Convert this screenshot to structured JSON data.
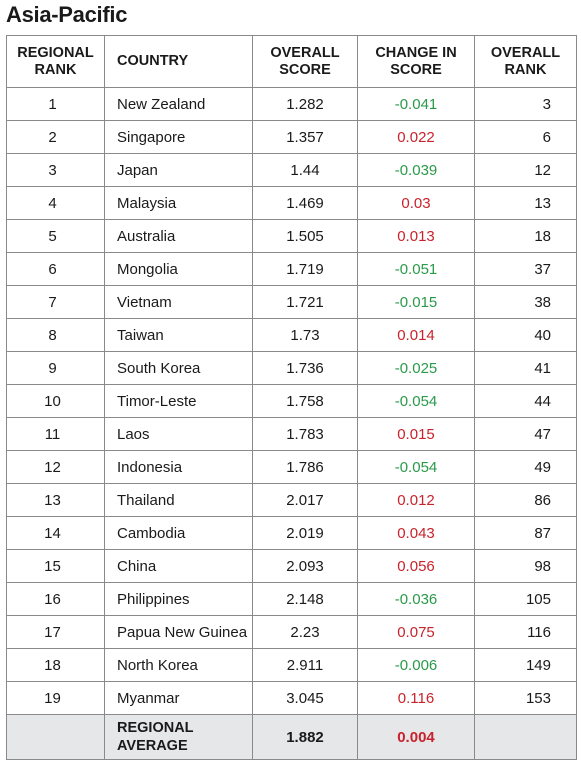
{
  "title": "Asia-Pacific",
  "headers": {
    "regional_rank": "REGIONAL RANK",
    "country": "COUNTRY",
    "overall_score": "OVERALL SCORE",
    "change_in_score": "CHANGE IN SCORE",
    "overall_rank": "OVERALL RANK"
  },
  "rows": [
    {
      "rank": "1",
      "country": "New Zealand",
      "score": "1.282",
      "change": "-0.041",
      "overall_rank": "3"
    },
    {
      "rank": "2",
      "country": "Singapore",
      "score": "1.357",
      "change": "0.022",
      "overall_rank": "6"
    },
    {
      "rank": "3",
      "country": "Japan",
      "score": "1.44",
      "change": "-0.039",
      "overall_rank": "12"
    },
    {
      "rank": "4",
      "country": "Malaysia",
      "score": "1.469",
      "change": "0.03",
      "overall_rank": "13"
    },
    {
      "rank": "5",
      "country": "Australia",
      "score": "1.505",
      "change": "0.013",
      "overall_rank": "18"
    },
    {
      "rank": "6",
      "country": "Mongolia",
      "score": "1.719",
      "change": "-0.051",
      "overall_rank": "37"
    },
    {
      "rank": "7",
      "country": "Vietnam",
      "score": "1.721",
      "change": "-0.015",
      "overall_rank": "38"
    },
    {
      "rank": "8",
      "country": "Taiwan",
      "score": "1.73",
      "change": "0.014",
      "overall_rank": "40"
    },
    {
      "rank": "9",
      "country": "South Korea",
      "score": "1.736",
      "change": "-0.025",
      "overall_rank": "41"
    },
    {
      "rank": "10",
      "country": "Timor-Leste",
      "score": "1.758",
      "change": "-0.054",
      "overall_rank": "44"
    },
    {
      "rank": "11",
      "country": "Laos",
      "score": "1.783",
      "change": "0.015",
      "overall_rank": "47"
    },
    {
      "rank": "12",
      "country": "Indonesia",
      "score": "1.786",
      "change": "-0.054",
      "overall_rank": "49"
    },
    {
      "rank": "13",
      "country": "Thailand",
      "score": "2.017",
      "change": "0.012",
      "overall_rank": "86"
    },
    {
      "rank": "14",
      "country": "Cambodia",
      "score": "2.019",
      "change": "0.043",
      "overall_rank": "87"
    },
    {
      "rank": "15",
      "country": "China",
      "score": "2.093",
      "change": "0.056",
      "overall_rank": "98"
    },
    {
      "rank": "16",
      "country": "Philippines",
      "score": "2.148",
      "change": "-0.036",
      "overall_rank": "105"
    },
    {
      "rank": "17",
      "country": "Papua New Guinea",
      "score": "2.23",
      "change": "0.075",
      "overall_rank": "116"
    },
    {
      "rank": "18",
      "country": "North Korea",
      "score": "2.911",
      "change": "-0.006",
      "overall_rank": "149"
    },
    {
      "rank": "19",
      "country": "Myanmar",
      "score": "3.045",
      "change": "0.116",
      "overall_rank": "153"
    }
  ],
  "average": {
    "label": "REGIONAL AVERAGE",
    "score": "1.882",
    "change": "0.004"
  },
  "colors": {
    "decrease": "#2a9a4a",
    "increase": "#c8232c",
    "average_row_bg": "#e6e7e8"
  }
}
